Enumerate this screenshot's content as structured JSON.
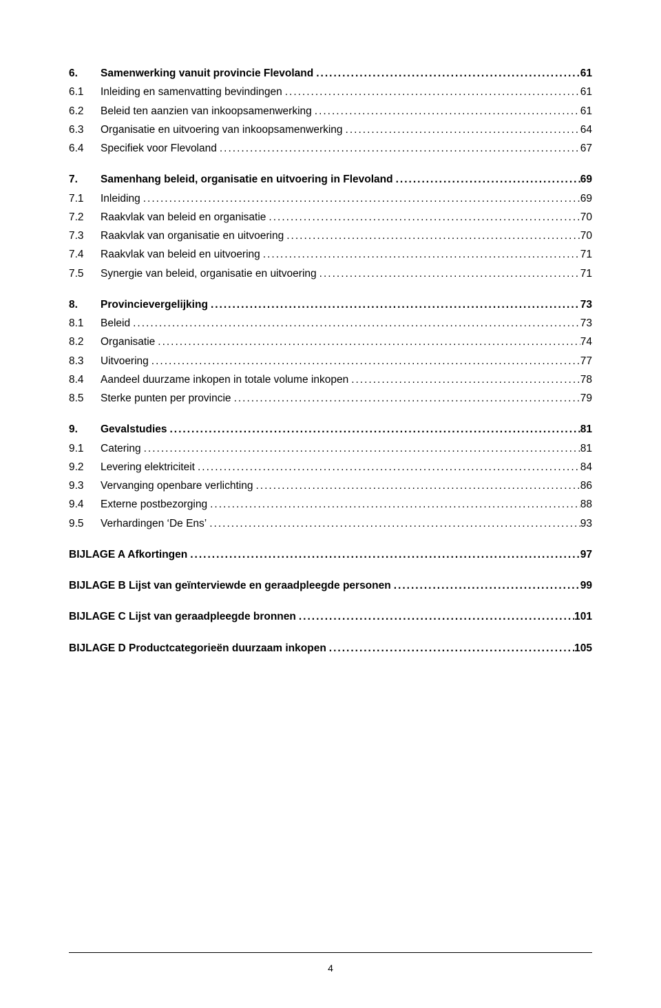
{
  "font": {
    "family": "Arial",
    "body_size_pt": 12
  },
  "colors": {
    "text": "#000000",
    "background": "#ffffff",
    "rule": "#000000"
  },
  "page_number": "4",
  "toc": [
    {
      "type": "row",
      "bold": true,
      "num": "6.",
      "title": "Samenwerking vanuit provincie Flevoland",
      "page": "61"
    },
    {
      "type": "row",
      "bold": false,
      "num": "6.1",
      "title": "Inleiding en samenvatting bevindingen",
      "page": "61"
    },
    {
      "type": "row",
      "bold": false,
      "num": "6.2",
      "title": "Beleid ten aanzien van inkoopsamenwerking",
      "page": "61"
    },
    {
      "type": "row",
      "bold": false,
      "num": "6.3",
      "title": "Organisatie en uitvoering van inkoopsamenwerking",
      "page": "64"
    },
    {
      "type": "row",
      "bold": false,
      "num": "6.4",
      "title": "Specifiek voor Flevoland",
      "page": "67"
    },
    {
      "type": "gap"
    },
    {
      "type": "row",
      "bold": true,
      "num": "7.",
      "title": "Samenhang beleid, organisatie en uitvoering in Flevoland",
      "page": "69"
    },
    {
      "type": "row",
      "bold": false,
      "num": "7.1",
      "title": "Inleiding",
      "page": "69"
    },
    {
      "type": "row",
      "bold": false,
      "num": "7.2",
      "title": "Raakvlak van beleid en organisatie",
      "page": "70"
    },
    {
      "type": "row",
      "bold": false,
      "num": "7.3",
      "title": "Raakvlak van organisatie en uitvoering",
      "page": "70"
    },
    {
      "type": "row",
      "bold": false,
      "num": "7.4",
      "title": "Raakvlak van beleid en uitvoering",
      "page": "71"
    },
    {
      "type": "row",
      "bold": false,
      "num": "7.5",
      "title": "Synergie van beleid, organisatie en uitvoering",
      "page": "71"
    },
    {
      "type": "gap"
    },
    {
      "type": "row",
      "bold": true,
      "num": "8.",
      "title": "Provincievergelijking",
      "page": "73"
    },
    {
      "type": "row",
      "bold": false,
      "num": "8.1",
      "title": "Beleid",
      "page": "73"
    },
    {
      "type": "row",
      "bold": false,
      "num": "8.2",
      "title": "Organisatie",
      "page": "74"
    },
    {
      "type": "row",
      "bold": false,
      "num": "8.3",
      "title": "Uitvoering",
      "page": "77"
    },
    {
      "type": "row",
      "bold": false,
      "num": "8.4",
      "title": "Aandeel duurzame inkopen in totale volume inkopen",
      "page": "78"
    },
    {
      "type": "row",
      "bold": false,
      "num": "8.5",
      "title": "Sterke punten per provincie",
      "page": "79"
    },
    {
      "type": "gap"
    },
    {
      "type": "row",
      "bold": true,
      "num": "9.",
      "title": "Gevalstudies",
      "page": "81"
    },
    {
      "type": "row",
      "bold": false,
      "num": "9.1",
      "title": "Catering",
      "page": "81"
    },
    {
      "type": "row",
      "bold": false,
      "num": "9.2",
      "title": "Levering elektriciteit",
      "page": "84"
    },
    {
      "type": "row",
      "bold": false,
      "num": "9.3",
      "title": "Vervanging openbare verlichting",
      "page": "86"
    },
    {
      "type": "row",
      "bold": false,
      "num": "9.4",
      "title": "Externe postbezorging",
      "page": "88"
    },
    {
      "type": "row",
      "bold": false,
      "num": "9.5",
      "title": "Verhardingen ‘De Ens’",
      "page": "93"
    },
    {
      "type": "gap"
    },
    {
      "type": "row",
      "bold": true,
      "bijlage": true,
      "num": "",
      "title": "BIJLAGE A  Afkortingen",
      "page": "97"
    },
    {
      "type": "gap"
    },
    {
      "type": "row",
      "bold": true,
      "bijlage": true,
      "num": "",
      "title": "BIJLAGE B  Lijst van geïnterviewde en geraadpleegde personen",
      "page": "99"
    },
    {
      "type": "gap"
    },
    {
      "type": "row",
      "bold": true,
      "bijlage": true,
      "num": "",
      "title": "BIJLAGE C  Lijst van geraadpleegde bronnen",
      "page": "101"
    },
    {
      "type": "gap"
    },
    {
      "type": "row",
      "bold": true,
      "bijlage": true,
      "num": "",
      "title": "BIJLAGE D  Productcategorieën duurzaam inkopen",
      "page": "105"
    }
  ]
}
